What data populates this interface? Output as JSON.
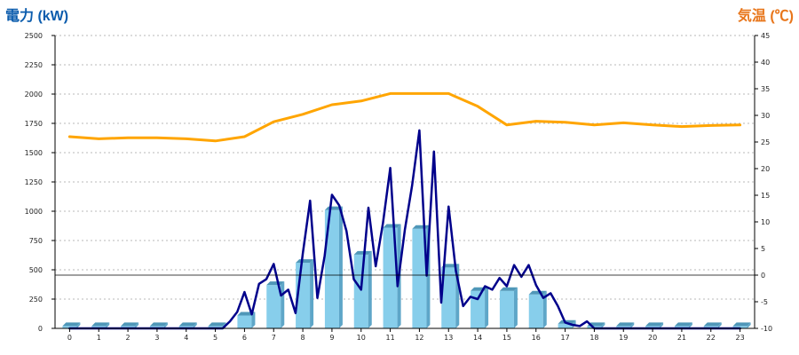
{
  "chart_data": {
    "type": "bar",
    "categories": [
      "0",
      "1",
      "2",
      "3",
      "4",
      "5",
      "6",
      "7",
      "8",
      "9",
      "10",
      "11",
      "12",
      "13",
      "14",
      "15",
      "16",
      "17",
      "18",
      "19",
      "20",
      "21",
      "22",
      "23"
    ],
    "y_left": {
      "label": "電力 (kW)",
      "ticks": [
        "0",
        "250",
        "500",
        "750",
        "1000",
        "1250",
        "1500",
        "1750",
        "2000",
        "2250",
        "2500"
      ],
      "ylim": [
        0,
        2500
      ]
    },
    "y_right": {
      "label": "気温 (℃)",
      "ticks": [
        "-10",
        "-5",
        "0",
        "5",
        "10",
        "15",
        "20",
        "25",
        "30",
        "35",
        "40",
        "45"
      ],
      "ylim": [
        -10,
        45
      ]
    },
    "grid": true,
    "series": [
      {
        "kind": "bar",
        "axis": "left",
        "color": "#87ceeb",
        "values": [
          20,
          20,
          20,
          20,
          20,
          20,
          110,
          370,
          560,
          1010,
          630,
          860,
          850,
          520,
          320,
          320,
          290,
          40,
          20,
          20,
          20,
          20,
          20,
          20
        ]
      },
      {
        "kind": "line",
        "axis": "left",
        "color": "#00008b",
        "x": [
          0,
          0.5,
          1,
          1.5,
          2,
          2.5,
          3,
          3.5,
          4,
          4.5,
          5,
          5.25,
          5.5,
          5.75,
          6,
          6.25,
          6.5,
          6.75,
          7,
          7.25,
          7.5,
          7.75,
          8,
          8.25,
          8.5,
          8.75,
          9,
          9.25,
          9.5,
          9.75,
          10,
          10.25,
          10.5,
          10.75,
          11,
          11.25,
          11.5,
          11.75,
          12,
          12.25,
          12.5,
          12.75,
          13,
          13.25,
          13.5,
          13.75,
          14,
          14.25,
          14.5,
          14.75,
          15,
          15.25,
          15.5,
          15.75,
          16,
          16.25,
          16.5,
          16.75,
          17,
          17.25,
          17.5,
          17.75,
          18,
          18.5,
          19,
          19.5,
          20,
          20.5,
          21,
          21.5,
          22,
          22.5,
          23
        ],
        "values": [
          0,
          0,
          0,
          0,
          0,
          0,
          0,
          0,
          0,
          0,
          0,
          0,
          60,
          140,
          310,
          120,
          380,
          420,
          550,
          280,
          330,
          130,
          640,
          1090,
          260,
          620,
          1140,
          1050,
          830,
          420,
          330,
          1030,
          530,
          900,
          1370,
          360,
          840,
          1220,
          1690,
          450,
          1510,
          220,
          1040,
          490,
          190,
          270,
          250,
          360,
          330,
          430,
          360,
          540,
          440,
          540,
          370,
          260,
          300,
          190,
          50,
          30,
          20,
          60,
          0,
          0,
          0,
          0,
          0,
          0,
          0,
          0,
          0,
          0,
          0
        ]
      },
      {
        "kind": "line",
        "axis": "right",
        "color": "#ffa500",
        "x": [
          0,
          1,
          2,
          3,
          4,
          5,
          6,
          7,
          8,
          9,
          10,
          11,
          12,
          13,
          14,
          15,
          16,
          17,
          18,
          19,
          20,
          21,
          22,
          23
        ],
        "values": [
          26,
          25.6,
          25.8,
          25.8,
          25.6,
          25.2,
          26,
          28.8,
          30.2,
          32,
          32.7,
          34.1,
          34.1,
          34.1,
          31.7,
          28.2,
          28.9,
          28.7,
          28.2,
          28.6,
          28.2,
          27.9,
          28.1,
          28.2
        ]
      }
    ],
    "colors": {
      "left_label": "#0b5cad",
      "right_label": "#e8761b",
      "bar": "#87ceeb",
      "bar_top": "#4f97b8",
      "bar_side": "#5ea6c8",
      "power_line": "#00008b",
      "temp_line": "#ffa500",
      "grid": "#b8b8b8",
      "axis": "#000000"
    }
  }
}
